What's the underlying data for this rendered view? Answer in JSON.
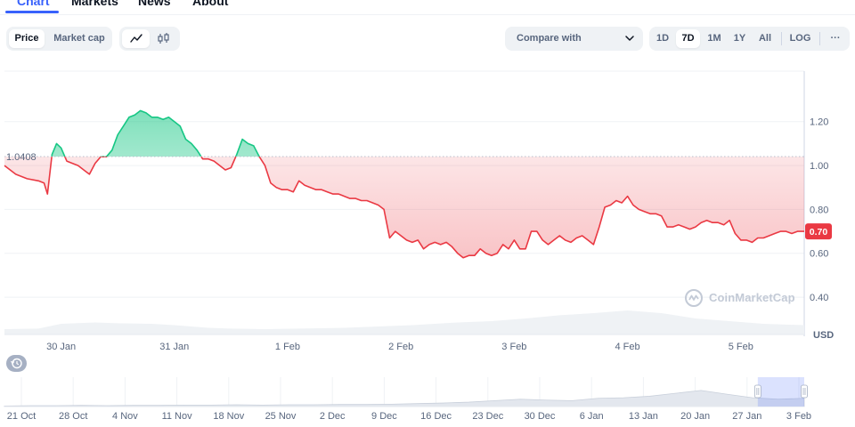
{
  "tabs": [
    {
      "label": "Chart",
      "active": true
    },
    {
      "label": "Markets",
      "active": false
    },
    {
      "label": "News",
      "active": false
    },
    {
      "label": "About",
      "active": false
    }
  ],
  "toolbar": {
    "price_label": "Price",
    "market_cap_label": "Market cap",
    "compare_label": "Compare with",
    "ranges": [
      "1D",
      "7D",
      "1M",
      "1Y",
      "All"
    ],
    "active_range": "7D",
    "log_label": "LOG",
    "more_label": "···"
  },
  "watermark": "CoinMarketCap",
  "colors": {
    "up": "#16c784",
    "down": "#ea3943",
    "accent": "#3861fb",
    "grid": "#eff2f5",
    "text": "#58667e"
  },
  "chart_data": {
    "type": "line",
    "currency_label": "USD",
    "reference_price": 1.0408,
    "reference_label": "1.0408",
    "current_price": 0.7,
    "current_label": "0.70",
    "ylim": [
      0.23,
      1.43
    ],
    "y_ticks": [
      0.4,
      0.6,
      0.8,
      1.0,
      1.2
    ],
    "y_tick_labels": [
      "0.40",
      "0.60",
      "0.80",
      "1.00",
      "1.20"
    ],
    "x_ticks": [
      {
        "label": "30 Jan",
        "t": 0.5
      },
      {
        "label": "31 Jan",
        "t": 1.5
      },
      {
        "label": "1 Feb",
        "t": 2.5
      },
      {
        "label": "2 Feb",
        "t": 3.5
      },
      {
        "label": "3 Feb",
        "t": 4.5
      },
      {
        "label": "4 Feb",
        "t": 5.5
      },
      {
        "label": "5 Feb",
        "t": 6.5
      }
    ],
    "xlim": [
      0.0,
      7.06
    ],
    "price_series": [
      [
        0.0,
        1.0
      ],
      [
        0.1,
        0.96
      ],
      [
        0.2,
        0.94
      ],
      [
        0.3,
        0.93
      ],
      [
        0.35,
        0.92
      ],
      [
        0.38,
        0.87
      ],
      [
        0.42,
        1.05
      ],
      [
        0.46,
        1.1
      ],
      [
        0.5,
        1.08
      ],
      [
        0.55,
        1.02
      ],
      [
        0.6,
        1.01
      ],
      [
        0.65,
        1.0
      ],
      [
        0.7,
        0.98
      ],
      [
        0.75,
        0.96
      ],
      [
        0.8,
        1.01
      ],
      [
        0.85,
        1.04
      ],
      [
        0.9,
        1.04
      ],
      [
        0.95,
        1.07
      ],
      [
        1.0,
        1.14
      ],
      [
        1.05,
        1.18
      ],
      [
        1.1,
        1.22
      ],
      [
        1.15,
        1.23
      ],
      [
        1.2,
        1.25
      ],
      [
        1.25,
        1.24
      ],
      [
        1.3,
        1.22
      ],
      [
        1.35,
        1.22
      ],
      [
        1.4,
        1.21
      ],
      [
        1.45,
        1.22
      ],
      [
        1.5,
        1.2
      ],
      [
        1.55,
        1.18
      ],
      [
        1.6,
        1.12
      ],
      [
        1.65,
        1.1
      ],
      [
        1.7,
        1.07
      ],
      [
        1.75,
        1.03
      ],
      [
        1.8,
        1.03
      ],
      [
        1.85,
        1.02
      ],
      [
        1.9,
        1.0
      ],
      [
        1.95,
        0.98
      ],
      [
        2.0,
        0.99
      ],
      [
        2.05,
        1.05
      ],
      [
        2.1,
        1.12
      ],
      [
        2.15,
        1.1
      ],
      [
        2.2,
        1.09
      ],
      [
        2.25,
        1.04
      ],
      [
        2.3,
        1.0
      ],
      [
        2.35,
        0.92
      ],
      [
        2.4,
        0.9
      ],
      [
        2.45,
        0.89
      ],
      [
        2.5,
        0.89
      ],
      [
        2.55,
        0.88
      ],
      [
        2.6,
        0.93
      ],
      [
        2.65,
        0.91
      ],
      [
        2.7,
        0.9
      ],
      [
        2.75,
        0.89
      ],
      [
        2.8,
        0.89
      ],
      [
        2.85,
        0.88
      ],
      [
        2.9,
        0.87
      ],
      [
        2.95,
        0.87
      ],
      [
        3.0,
        0.86
      ],
      [
        3.05,
        0.85
      ],
      [
        3.1,
        0.85
      ],
      [
        3.15,
        0.84
      ],
      [
        3.2,
        0.84
      ],
      [
        3.25,
        0.83
      ],
      [
        3.3,
        0.82
      ],
      [
        3.35,
        0.8
      ],
      [
        3.4,
        0.67
      ],
      [
        3.45,
        0.7
      ],
      [
        3.5,
        0.68
      ],
      [
        3.55,
        0.66
      ],
      [
        3.6,
        0.65
      ],
      [
        3.65,
        0.66
      ],
      [
        3.7,
        0.62
      ],
      [
        3.75,
        0.64
      ],
      [
        3.8,
        0.65
      ],
      [
        3.85,
        0.64
      ],
      [
        3.9,
        0.65
      ],
      [
        3.95,
        0.63
      ],
      [
        4.0,
        0.6
      ],
      [
        4.05,
        0.58
      ],
      [
        4.1,
        0.59
      ],
      [
        4.15,
        0.59
      ],
      [
        4.2,
        0.62
      ],
      [
        4.25,
        0.6
      ],
      [
        4.3,
        0.59
      ],
      [
        4.35,
        0.6
      ],
      [
        4.4,
        0.64
      ],
      [
        4.45,
        0.62
      ],
      [
        4.5,
        0.66
      ],
      [
        4.55,
        0.62
      ],
      [
        4.6,
        0.62
      ],
      [
        4.65,
        0.7
      ],
      [
        4.7,
        0.7
      ],
      [
        4.75,
        0.66
      ],
      [
        4.8,
        0.64
      ],
      [
        4.85,
        0.66
      ],
      [
        4.9,
        0.68
      ],
      [
        4.95,
        0.66
      ],
      [
        5.0,
        0.65
      ],
      [
        5.05,
        0.67
      ],
      [
        5.1,
        0.68
      ],
      [
        5.15,
        0.66
      ],
      [
        5.2,
        0.64
      ],
      [
        5.25,
        0.72
      ],
      [
        5.3,
        0.81
      ],
      [
        5.35,
        0.82
      ],
      [
        5.4,
        0.84
      ],
      [
        5.45,
        0.83
      ],
      [
        5.5,
        0.86
      ],
      [
        5.55,
        0.82
      ],
      [
        5.6,
        0.8
      ],
      [
        5.65,
        0.79
      ],
      [
        5.7,
        0.78
      ],
      [
        5.75,
        0.78
      ],
      [
        5.8,
        0.77
      ],
      [
        5.85,
        0.72
      ],
      [
        5.9,
        0.72
      ],
      [
        5.95,
        0.73
      ],
      [
        6.0,
        0.72
      ],
      [
        6.05,
        0.71
      ],
      [
        6.1,
        0.72
      ],
      [
        6.15,
        0.74
      ],
      [
        6.2,
        0.75
      ],
      [
        6.25,
        0.74
      ],
      [
        6.3,
        0.74
      ],
      [
        6.35,
        0.73
      ],
      [
        6.4,
        0.75
      ],
      [
        6.45,
        0.69
      ],
      [
        6.5,
        0.66
      ],
      [
        6.55,
        0.66
      ],
      [
        6.6,
        0.65
      ],
      [
        6.65,
        0.67
      ],
      [
        6.7,
        0.67
      ],
      [
        6.75,
        0.68
      ],
      [
        6.8,
        0.69
      ],
      [
        6.85,
        0.7
      ],
      [
        6.9,
        0.7
      ],
      [
        6.95,
        0.69
      ],
      [
        7.0,
        0.7
      ],
      [
        7.06,
        0.7
      ]
    ],
    "volume_series": [
      [
        0.0,
        0.2
      ],
      [
        0.3,
        0.22
      ],
      [
        0.5,
        0.4
      ],
      [
        0.8,
        0.45
      ],
      [
        1.0,
        0.42
      ],
      [
        1.3,
        0.4
      ],
      [
        1.5,
        0.35
      ],
      [
        1.8,
        0.25
      ],
      [
        2.0,
        0.22
      ],
      [
        2.3,
        0.2
      ],
      [
        2.6,
        0.22
      ],
      [
        3.0,
        0.25
      ],
      [
        3.3,
        0.3
      ],
      [
        3.6,
        0.35
      ],
      [
        4.0,
        0.45
      ],
      [
        4.3,
        0.5
      ],
      [
        4.6,
        0.6
      ],
      [
        4.9,
        0.72
      ],
      [
        5.2,
        0.8
      ],
      [
        5.5,
        0.9
      ],
      [
        5.8,
        0.8
      ],
      [
        6.1,
        0.6
      ],
      [
        6.4,
        0.5
      ],
      [
        6.7,
        0.4
      ],
      [
        7.06,
        0.35
      ]
    ],
    "navigator": {
      "x_labels": [
        "21 Oct",
        "28 Oct",
        "4 Nov",
        "11 Nov",
        "18 Nov",
        "25 Nov",
        "2 Dec",
        "9 Dec",
        "16 Dec",
        "23 Dec",
        "30 Dec",
        "6 Jan",
        "13 Jan",
        "20 Jan",
        "27 Jan",
        "3 Feb"
      ],
      "series": [
        [
          0,
          0.02
        ],
        [
          0.5,
          0.03
        ],
        [
          1,
          0.03
        ],
        [
          1.5,
          0.04
        ],
        [
          2,
          0.03
        ],
        [
          2.5,
          0.04
        ],
        [
          3,
          0.04
        ],
        [
          3.5,
          0.05
        ],
        [
          4,
          0.05
        ],
        [
          4.5,
          0.06
        ],
        [
          5,
          0.05
        ],
        [
          5.5,
          0.06
        ],
        [
          6,
          0.06
        ],
        [
          6.5,
          0.07
        ],
        [
          7,
          0.07
        ],
        [
          7.5,
          0.08
        ],
        [
          8,
          0.1
        ],
        [
          8.5,
          0.12
        ],
        [
          9,
          0.15
        ],
        [
          9.5,
          0.2
        ],
        [
          10,
          0.25
        ],
        [
          10.5,
          0.22
        ],
        [
          11,
          0.2
        ],
        [
          11.5,
          0.28
        ],
        [
          12,
          0.3
        ],
        [
          12.5,
          0.35
        ],
        [
          13,
          0.45
        ],
        [
          13.5,
          0.55
        ],
        [
          14,
          0.42
        ],
        [
          14.5,
          0.3
        ],
        [
          15,
          0.25
        ],
        [
          15.5,
          0.28
        ]
      ],
      "selected_range": [
        14.6,
        15.5
      ]
    }
  }
}
